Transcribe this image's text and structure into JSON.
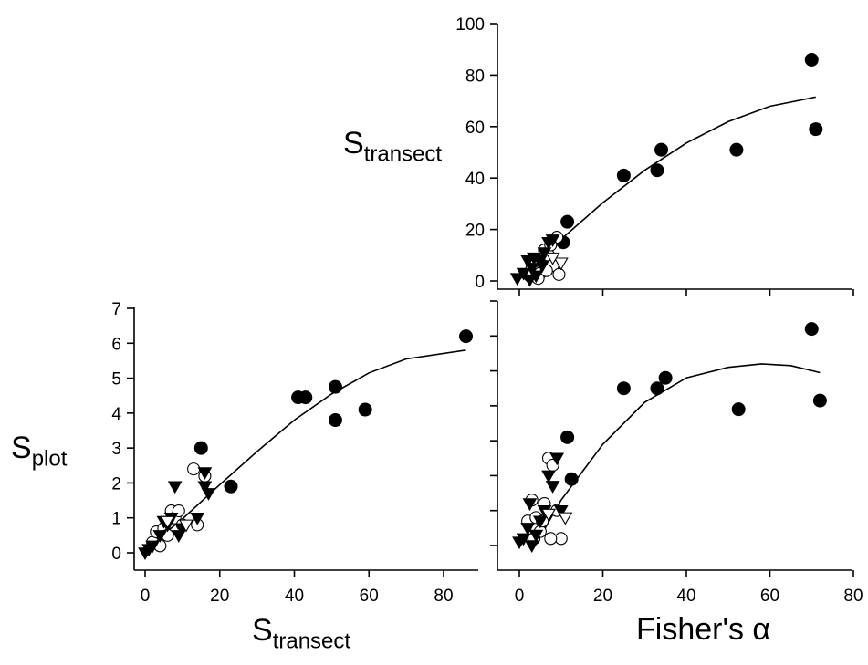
{
  "figure": {
    "labels": {
      "top_right_ylabel": {
        "main": "S",
        "sub": "transect"
      },
      "bottom_left_ylabel": {
        "main": "S",
        "sub": "plot"
      },
      "bottom_left_xlabel": {
        "main": "S",
        "sub": "transect"
      },
      "bottom_right_xlabel": "Fisher's α"
    }
  },
  "chart_data": [
    {
      "id": "top-right",
      "type": "scatter",
      "xlabel": "Fisher's α",
      "ylabel": "Stransect",
      "xlim": [
        0,
        80
      ],
      "ylim": [
        0,
        100
      ],
      "xticks": [
        0,
        20,
        40,
        60,
        80
      ],
      "yticks": [
        0,
        20,
        40,
        60,
        80,
        100
      ],
      "show_x_tick_labels": false,
      "show_y_tick_labels": true,
      "grid": false,
      "series": [
        {
          "marker": "filled-circle",
          "points": [
            [
              70,
              86
            ],
            [
              71,
              59
            ],
            [
              52,
              51
            ],
            [
              34,
              51
            ],
            [
              33,
              43
            ],
            [
              25,
              41
            ],
            [
              11.5,
              23
            ],
            [
              10.5,
              15
            ]
          ]
        },
        {
          "marker": "open-circle",
          "points": [
            [
              3,
              5
            ],
            [
              4,
              8
            ],
            [
              5,
              3
            ],
            [
              6,
              12
            ],
            [
              7,
              10
            ],
            [
              8,
              6
            ],
            [
              9,
              17
            ],
            [
              9.5,
              2.5
            ],
            [
              2.5,
              2
            ],
            [
              4.5,
              1
            ],
            [
              6.5,
              4
            ],
            [
              7.5,
              14
            ]
          ]
        },
        {
          "marker": "filled-triangle",
          "points": [
            [
              -0.5,
              1
            ],
            [
              1,
              3
            ],
            [
              2,
              8
            ],
            [
              3,
              5
            ],
            [
              4,
              2
            ],
            [
              5,
              8
            ],
            [
              6,
              11
            ],
            [
              7,
              15
            ],
            [
              8,
              16
            ],
            [
              2.5,
              0.5
            ],
            [
              3.5,
              9
            ],
            [
              5.5,
              6
            ]
          ]
        },
        {
          "marker": "open-triangle",
          "points": [
            [
              10,
              7
            ],
            [
              8,
              9
            ]
          ]
        }
      ],
      "curve": [
        [
          0,
          0.5
        ],
        [
          10,
          16.2
        ],
        [
          20,
          30.4
        ],
        [
          30,
          43
        ],
        [
          40,
          53.6
        ],
        [
          50,
          61.9
        ],
        [
          60,
          67.9
        ],
        [
          71,
          71.5
        ]
      ]
    },
    {
      "id": "bottom-left",
      "type": "scatter",
      "xlabel": "Stransect",
      "ylabel": "Splot",
      "xlim": [
        -3,
        90
      ],
      "ylim": [
        -0.3,
        7
      ],
      "xticks": [
        0,
        20,
        40,
        60,
        80
      ],
      "yticks": [
        0,
        1,
        2,
        3,
        4,
        5,
        6,
        7
      ],
      "show_x_tick_labels": true,
      "show_y_tick_labels": true,
      "grid": false,
      "series": [
        {
          "marker": "filled-circle",
          "points": [
            [
              86,
              6.2
            ],
            [
              41,
              4.45
            ],
            [
              43,
              4.45
            ],
            [
              51,
              4.75
            ],
            [
              51,
              3.8
            ],
            [
              59,
              4.1
            ],
            [
              15,
              3
            ],
            [
              23,
              1.9
            ]
          ]
        },
        {
          "marker": "open-circle",
          "points": [
            [
              2,
              0.3
            ],
            [
              3,
              0.6
            ],
            [
              4,
              0.2
            ],
            [
              5,
              0.7
            ],
            [
              6,
              0.5
            ],
            [
              7,
              1.2
            ],
            [
              8,
              1.0
            ],
            [
              9,
              1.2
            ],
            [
              10,
              0.8
            ],
            [
              13,
              2.4
            ],
            [
              14,
              0.8
            ],
            [
              16,
              2.2
            ]
          ]
        },
        {
          "marker": "filled-triangle",
          "points": [
            [
              0,
              0
            ],
            [
              1,
              0.1
            ],
            [
              2,
              0.2
            ],
            [
              4,
              0.5
            ],
            [
              5,
              0.9
            ],
            [
              6,
              0.8
            ],
            [
              7,
              1.0
            ],
            [
              8,
              1.9
            ],
            [
              9,
              0.5
            ],
            [
              10,
              0.7
            ],
            [
              14,
              1.0
            ],
            [
              16,
              2.3
            ],
            [
              16,
              1.9
            ],
            [
              17,
              1.7
            ]
          ]
        },
        {
          "marker": "open-triangle",
          "points": [
            [
              11,
              0.8
            ],
            [
              6,
              0.9
            ]
          ]
        }
      ],
      "curve": [
        [
          0,
          0.1
        ],
        [
          10,
          0.97
        ],
        [
          20,
          1.95
        ],
        [
          30,
          2.9
        ],
        [
          40,
          3.8
        ],
        [
          50,
          4.55
        ],
        [
          60,
          5.15
        ],
        [
          70,
          5.55
        ],
        [
          86,
          5.8
        ]
      ]
    },
    {
      "id": "bottom-right",
      "type": "scatter",
      "xlabel": "Fisher's α",
      "ylabel": "Splot",
      "xlim": [
        -3,
        80
      ],
      "ylim": [
        -0.3,
        7
      ],
      "xticks": [
        0,
        20,
        40,
        60,
        80
      ],
      "yticks": [
        0,
        1,
        2,
        3,
        4,
        5,
        6,
        7
      ],
      "show_x_tick_labels": true,
      "show_y_tick_labels": false,
      "grid": false,
      "series": [
        {
          "marker": "filled-circle",
          "points": [
            [
              70,
              6.2
            ],
            [
              72,
              4.15
            ],
            [
              52.5,
              3.9
            ],
            [
              35,
              4.8
            ],
            [
              33,
              4.5
            ],
            [
              25,
              4.5
            ],
            [
              11.5,
              3.1
            ],
            [
              12.5,
              1.9
            ]
          ]
        },
        {
          "marker": "open-circle",
          "points": [
            [
              2,
              0.7
            ],
            [
              3,
              1.3
            ],
            [
              4,
              0.8
            ],
            [
              5,
              0.4
            ],
            [
              6,
              1.2
            ],
            [
              7,
              2.5
            ],
            [
              8,
              2.3
            ],
            [
              9,
              1.0
            ],
            [
              10,
              0.2
            ],
            [
              3.5,
              0.2
            ],
            [
              5.5,
              0.7
            ],
            [
              7.5,
              0.2
            ]
          ]
        },
        {
          "marker": "filled-triangle",
          "points": [
            [
              0,
              0.1
            ],
            [
              1,
              0.2
            ],
            [
              2,
              0.5
            ],
            [
              3,
              0
            ],
            [
              4,
              0.3
            ],
            [
              5,
              0.7
            ],
            [
              6,
              1.0
            ],
            [
              7,
              2.0
            ],
            [
              8,
              1.7
            ],
            [
              9,
              2.5
            ],
            [
              10,
              1.0
            ],
            [
              2.5,
              1.2
            ]
          ]
        },
        {
          "marker": "open-triangle",
          "points": [
            [
              11,
              0.8
            ],
            [
              7,
              0.9
            ]
          ]
        }
      ],
      "curve": [
        [
          5,
          0.25
        ],
        [
          10,
          1.3
        ],
        [
          20,
          2.9
        ],
        [
          30,
          4.1
        ],
        [
          40,
          4.8
        ],
        [
          50,
          5.1
        ],
        [
          58,
          5.2
        ],
        [
          65,
          5.15
        ],
        [
          72,
          4.95
        ]
      ]
    }
  ]
}
